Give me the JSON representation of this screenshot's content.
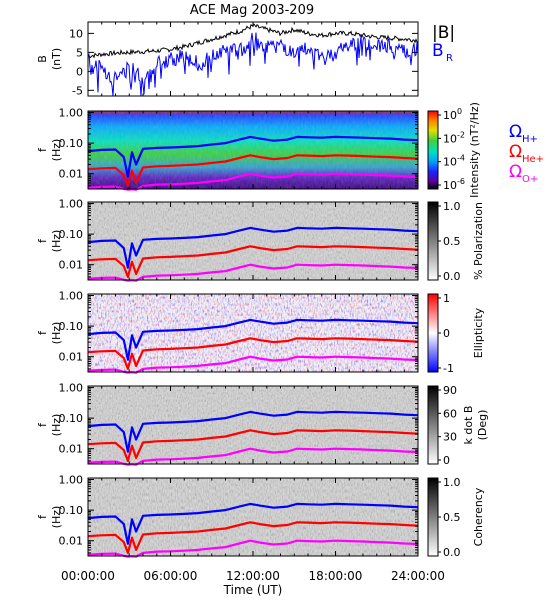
{
  "figure": {
    "title": "ACE Mag 2003-209",
    "xlabel": "Time (UT)",
    "x_ticks": [
      "00:00:00",
      "06:00:00",
      "12:00:00",
      "18:00:00",
      "24:00:00"
    ],
    "x_tick_hours": [
      0,
      6,
      12,
      18,
      24
    ]
  },
  "legend": {
    "B_mag": {
      "label": "|B|",
      "color": "#000000"
    },
    "B_R": {
      "label": "B",
      "sub": "R",
      "color": "#0000ff"
    },
    "omega_H": {
      "label": "Ω",
      "sub": "H+",
      "color": "#0000ff"
    },
    "omega_He": {
      "label": "Ω",
      "sub": "He+",
      "color": "#ff0000"
    },
    "omega_O": {
      "label": "Ω",
      "sub": "O+",
      "color": "#ff00ff"
    }
  },
  "chart_data": [
    {
      "type": "line",
      "panel": "field",
      "ylabel_top": "B",
      "ylabel_bottom": "(nT)",
      "y_ticks": [
        "10",
        "5",
        "0",
        "-5"
      ],
      "y_tick_values": [
        10,
        5,
        0,
        -5
      ],
      "ylim": [
        -6.5,
        13
      ],
      "x": [
        0,
        1,
        2,
        3,
        4,
        5,
        6,
        7,
        8,
        9,
        10,
        11,
        12,
        13,
        14,
        15,
        16,
        17,
        18,
        19,
        20,
        21,
        22,
        23,
        24
      ],
      "series": [
        {
          "name": "|B|",
          "color": "#000000",
          "values": [
            4,
            4.5,
            4.8,
            5,
            5.2,
            5.4,
            5.8,
            6.5,
            7.5,
            8.5,
            9.5,
            10.5,
            12,
            11,
            10,
            11,
            10,
            9.5,
            10,
            10,
            9.5,
            9,
            8.8,
            8.5,
            8.2
          ]
        },
        {
          "name": "B_R",
          "color": "#0000ff",
          "values": [
            3,
            1,
            -2,
            1,
            -2,
            2,
            3,
            4,
            2,
            4,
            6,
            5,
            9,
            6,
            7,
            4,
            6,
            3,
            5,
            7,
            8,
            6,
            7,
            5,
            6
          ]
        }
      ]
    },
    {
      "type": "heatmap",
      "panel": "intensity",
      "ylabel_top": "f",
      "ylabel_bottom": "(Hz)",
      "y_ticks": [
        "1.00",
        "0.10",
        "0.01"
      ],
      "colorbar_ticks": [
        "10^0",
        "10^-2",
        "10^-4",
        "10^-6"
      ],
      "colorbar_label": "Intensity (nT²/Hz)",
      "colorbar_range": [
        -6.5,
        0.5
      ]
    },
    {
      "type": "heatmap",
      "panel": "polarization",
      "ylabel_top": "f",
      "ylabel_bottom": "(Hz)",
      "y_ticks": [
        "1.00",
        "0.10",
        "0.01"
      ],
      "colorbar_ticks": [
        "1.0",
        "0.5",
        "0.0"
      ],
      "colorbar_label": "% Polarization",
      "colorbar_range": [
        0,
        1
      ]
    },
    {
      "type": "heatmap",
      "panel": "ellipticity",
      "ylabel_top": "f",
      "ylabel_bottom": "(Hz)",
      "y_ticks": [
        "1.00",
        "0.10",
        "0.01"
      ],
      "colorbar_ticks": [
        "1",
        "0",
        "-1"
      ],
      "colorbar_label": "Ellipticity",
      "colorbar_range": [
        -1,
        1
      ]
    },
    {
      "type": "heatmap",
      "panel": "kdotb",
      "ylabel_top": "f",
      "ylabel_bottom": "(Hz)",
      "y_ticks": [
        "1.00",
        "0.10",
        "0.01"
      ],
      "colorbar_ticks": [
        "90",
        "60",
        "30",
        "0"
      ],
      "colorbar_label_top": "k dot B",
      "colorbar_label_bottom": "(Deg)",
      "colorbar_range": [
        0,
        90
      ]
    },
    {
      "type": "heatmap",
      "panel": "coherency",
      "ylabel_top": "f",
      "ylabel_bottom": "(Hz)",
      "y_ticks": [
        "1.00",
        "0.10",
        "0.01"
      ],
      "colorbar_ticks": [
        "1.0",
        "0.5",
        "0.0"
      ],
      "colorbar_label": "Coherency",
      "colorbar_range": [
        0,
        1
      ]
    },
    {
      "type": "line",
      "panel": "gyrofrequency-overlays",
      "description": "ion gyrofrequency curves overlaid on every spectral panel",
      "y_units": "Hz",
      "ylim_log10": [
        -2.5,
        0.05
      ],
      "x": [
        0,
        1,
        2,
        2.6,
        2.9,
        3.2,
        3.5,
        4,
        5,
        6,
        7,
        8,
        9,
        10,
        11,
        11.8,
        12.5,
        13.5,
        14.5,
        15.2,
        16,
        17,
        18,
        19,
        20,
        21,
        22,
        23,
        24
      ],
      "series": [
        {
          "name": "H+",
          "color": "#0000ff",
          "values": [
            0.055,
            0.06,
            0.062,
            0.035,
            0.008,
            0.05,
            0.02,
            0.065,
            0.07,
            0.072,
            0.075,
            0.08,
            0.09,
            0.1,
            0.13,
            0.16,
            0.14,
            0.12,
            0.13,
            0.16,
            0.155,
            0.15,
            0.16,
            0.155,
            0.15,
            0.145,
            0.14,
            0.13,
            0.125
          ]
        },
        {
          "name": "He+",
          "color": "#ff0000",
          "values": [
            0.014,
            0.015,
            0.0155,
            0.009,
            0.004,
            0.0125,
            0.005,
            0.016,
            0.0175,
            0.018,
            0.019,
            0.02,
            0.0225,
            0.025,
            0.0325,
            0.04,
            0.035,
            0.03,
            0.0325,
            0.04,
            0.039,
            0.0375,
            0.04,
            0.039,
            0.0375,
            0.036,
            0.035,
            0.0325,
            0.031
          ]
        },
        {
          "name": "O+",
          "color": "#ff00ff",
          "values": [
            0.0035,
            0.0037,
            0.0038,
            0.0032,
            0.003,
            0.0031,
            0.003,
            0.004,
            0.0044,
            0.0045,
            0.0047,
            0.005,
            0.0056,
            0.0062,
            0.0081,
            0.01,
            0.0087,
            0.0075,
            0.0081,
            0.01,
            0.0097,
            0.0094,
            0.01,
            0.0097,
            0.0094,
            0.009,
            0.0087,
            0.0081,
            0.0078
          ]
        }
      ]
    }
  ]
}
